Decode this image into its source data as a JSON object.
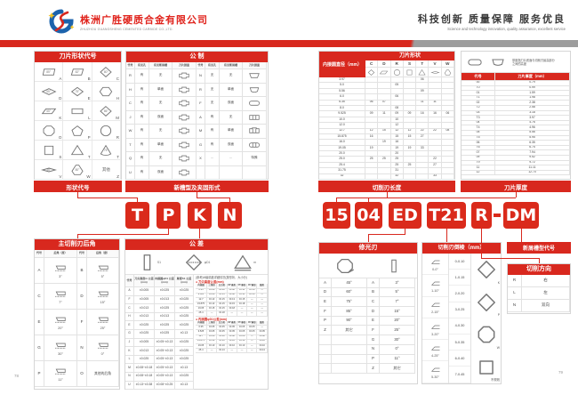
{
  "page": {
    "page_no_left": "78",
    "page_no_right": "79"
  },
  "colors": {
    "red": "#d8281e",
    "gray_band": "#9d9d9d",
    "logo_blue": "#1c63ac"
  },
  "header": {
    "company_cn": "株洲广胜硬质合金有限公司",
    "company_en": "ZHUZHOU GUANGSHENG CEMENTED CARBIDE CO.,LTD.",
    "slogan_cn": "科技创新 质量保障 服务优良",
    "slogan_en": "Science and technology innovation, quality assurance, excellent service"
  },
  "left_page": {
    "shape_table": {
      "title": "刀片形状代号",
      "cells": [
        {
          "code": "A",
          "angle": "85°",
          "icon": "para85"
        },
        {
          "code": "B",
          "angle": "82°",
          "icon": "para82"
        },
        {
          "code": "C",
          "angle": "80°",
          "icon": "dia80"
        },
        {
          "code": "D",
          "angle": "55°",
          "icon": "dia55"
        },
        {
          "code": "E",
          "angle": "75°",
          "icon": "dia75"
        },
        {
          "code": "H",
          "angle": "",
          "icon": "hex"
        },
        {
          "code": "K",
          "angle": "55°",
          "icon": "para55"
        },
        {
          "code": "L",
          "angle": "",
          "icon": "rect"
        },
        {
          "code": "M",
          "angle": "86°",
          "icon": "dia86"
        },
        {
          "code": "O",
          "angle": "",
          "icon": "oct"
        },
        {
          "code": "P",
          "angle": "",
          "icon": "pent"
        },
        {
          "code": "R",
          "angle": "",
          "icon": "circ"
        },
        {
          "code": "S",
          "angle": "",
          "icon": "sq"
        },
        {
          "code": "T",
          "angle": "",
          "icon": "tri"
        },
        {
          "code": "T",
          "angle": "75°",
          "icon": "tri75"
        },
        {
          "code": "V",
          "angle": "35°",
          "icon": "dia35"
        },
        {
          "code": "W",
          "angle": "80°",
          "icon": "trig80"
        },
        {
          "code": "Z",
          "angle": "其他",
          "icon": ""
        }
      ]
    },
    "metric_table": {
      "title": "公 制",
      "col_headers": [
        "代号",
        "有无孔",
        "有无断屑槽",
        "刀片剖面",
        "代号",
        "有无孔",
        "有无断屑槽",
        "刀片剖面"
      ],
      "left_rows": [
        {
          "code": "R",
          "hole": "有",
          "chip": "无",
          "icon": "cs_hole"
        },
        {
          "code": "H",
          "hole": "有",
          "chip": "单面",
          "icon": "cs_hole"
        },
        {
          "code": "C",
          "hole": "有",
          "chip": "无",
          "icon": "cs_hole"
        },
        {
          "code": "J",
          "hole": "有",
          "chip": "双面",
          "icon": "cs_hole"
        },
        {
          "code": "W",
          "hole": "有",
          "chip": "无",
          "icon": "cs_hole"
        },
        {
          "code": "T",
          "hole": "有",
          "chip": "单面",
          "icon": "cs_hole"
        },
        {
          "code": "Q",
          "hole": "有",
          "chip": "无",
          "icon": "cs_hole"
        },
        {
          "code": "U",
          "hole": "有",
          "chip": "双面",
          "icon": "cs_hole"
        }
      ],
      "right_rows": [
        {
          "code": "N",
          "hole": "无",
          "chip": "无",
          "icon": "cs_trap",
          "section_text": ""
        },
        {
          "code": "R",
          "hole": "无",
          "chip": "单面",
          "icon": "cs_trap_round",
          "section_text": ""
        },
        {
          "code": "F",
          "hole": "无",
          "chip": "双面",
          "icon": "cs_oval",
          "section_text": ""
        },
        {
          "code": "A",
          "hole": "有",
          "chip": "无",
          "icon": "cs_rect_lines",
          "section_text": ""
        },
        {
          "code": "M",
          "hole": "有",
          "chip": "单面",
          "icon": "cs_rect_lines_b",
          "section_text": ""
        },
        {
          "code": "G",
          "hole": "有",
          "chip": "双面",
          "icon": "cs_capsule_lines",
          "section_text": ""
        },
        {
          "code": "X",
          "hole": "…",
          "chip": "…",
          "icon": "",
          "section_text": "特殊"
        }
      ]
    },
    "bar_shape_code": "形状代号",
    "bar_new_groove": "新槽型及夹固形式",
    "code_letters": [
      "T",
      "P",
      "K",
      "N"
    ],
    "clearance_table": {
      "title": "主切削刃后角",
      "col_headers": [
        "代号",
        "后角（度）",
        "代号",
        "后角（度）"
      ],
      "rows": [
        {
          "c1": "A",
          "a1": "3°",
          "c2": "B",
          "a2": "5°"
        },
        {
          "c1": "C",
          "a1": "7°",
          "c2": "D",
          "a2": "15°"
        },
        {
          "c1": "E",
          "a1": "20°",
          "c2": "F",
          "a2": "25°"
        },
        {
          "c1": "G",
          "a1": "30°",
          "c2": "N",
          "a2": "0°"
        },
        {
          "c1": "P",
          "a1": "11°",
          "c2": "O",
          "a2": "其他的后角"
        }
      ]
    },
    "tolerance_table": {
      "title": "公 差",
      "diagram_labels": [
        "S1",
        "φD1",
        "m"
      ],
      "diagram_icons": [
        "tol_rect",
        "tol_dia",
        "tol_tri"
      ],
      "col_headers": [
        "代号",
        "刀尖高度m 公差(mm)",
        "内接圆φD1 公差(mm)",
        "厚度S1 公差(mm)"
      ],
      "rows": [
        [
          "A",
          "±0.005",
          "±0.025",
          "±0.025"
        ],
        [
          "F",
          "±0.005",
          "±0.013",
          "±0.025"
        ],
        [
          "C",
          "±0.013",
          "±0.025",
          "±0.025"
        ],
        [
          "H",
          "±0.013",
          "±0.013",
          "±0.025"
        ],
        [
          "E",
          "±0.025",
          "±0.025",
          "±0.025"
        ],
        [
          "G",
          "±0.025",
          "±0.025",
          "±0.13"
        ],
        [
          "J",
          "±0.005",
          "±0.05~±0.13",
          "±0.025"
        ],
        [
          "K",
          "±0.013",
          "±0.05~±0.13",
          "±0.025"
        ],
        [
          "L",
          "±0.025",
          "±0.05~±0.13",
          "±0.025"
        ],
        [
          "M",
          "±0.08~±0.18",
          "±0.05~±0.13",
          "±0.13"
        ],
        [
          "N",
          "±0.08~±0.18",
          "±0.05~±0.13",
          "±0.025"
        ],
        [
          "U",
          "±0.13~±0.38",
          "±0.08~±0.25",
          "±0.13"
        ]
      ],
      "ref_note": "(参考)M级精度详细情况(按形状、大小分)",
      "sub_headers": [
        "内接圆",
        "三角形",
        "正方形",
        "80°菱形",
        "55°菱形",
        "35°菱形",
        "圆形"
      ],
      "sub1_title": "● 刀尖高度公差(mm)",
      "sub1_rows": [
        [
          "6.35",
          "±0.08",
          "±0.08",
          "±0.08",
          "±0.11",
          "±0.16",
          "—"
        ],
        [
          "9.525",
          "±0.08",
          "±0.13",
          "±0.08",
          "±0.11",
          "±0.16",
          "—"
        ],
        [
          "12.7",
          "±0.13",
          "±0.15",
          "±0.13",
          "±0.15",
          "—",
          "—"
        ],
        [
          "15.875",
          "±0.13",
          "±0.15",
          "±0.15",
          "±0.18",
          "—",
          "—"
        ],
        [
          "19.05",
          "±0.15",
          "±0.15",
          "±0.18",
          "—",
          "—",
          "—"
        ],
        [
          "25.4",
          "—",
          "±0.18",
          "—",
          "—",
          "—",
          "—"
        ]
      ],
      "sub2_title": "● 内接圆φD1公差(mm)",
      "sub2_rows": [
        [
          "6.35",
          "±0.05",
          "±0.05",
          "±0.05",
          "±0.05",
          "±0.05",
          "—"
        ],
        [
          "9.525",
          "±0.05",
          "±0.05",
          "±0.05",
          "±0.05",
          "±0.05",
          "±0.05"
        ],
        [
          "12.7",
          "±0.08",
          "±0.08",
          "±0.08",
          "±0.08",
          "—",
          "±0.08"
        ],
        [
          "15.875",
          "±0.10",
          "±0.10",
          "±0.10",
          "±0.10",
          "—",
          "±0.10"
        ],
        [
          "19.05",
          "±0.10",
          "±0.10",
          "±0.10",
          "±0.10",
          "—",
          "±0.10"
        ],
        [
          "25.4",
          "—",
          "±0.13",
          "—",
          "—",
          "—",
          "±0.13"
        ]
      ]
    }
  },
  "right_page": {
    "size_table": {
      "title": "刀片形状",
      "ic_header": "内接圆直径（mm）",
      "cols": [
        {
          "label": "C",
          "icon": "dia80"
        },
        {
          "label": "D",
          "icon": "para55"
        },
        {
          "label": "R",
          "icon": "circ"
        },
        {
          "label": "S",
          "icon": "sq"
        },
        {
          "label": "T",
          "icon": "tri"
        },
        {
          "label": "V",
          "icon": "dia35"
        },
        {
          "label": "W",
          "icon": "trig80"
        }
      ],
      "rows": [
        {
          "ic": "3.97",
          "vals": [
            "",
            "",
            "",
            "",
            "06",
            "",
            ""
          ]
        },
        {
          "ic": "5.0",
          "vals": [
            "",
            "",
            "05",
            "",
            "",
            "",
            ""
          ]
        },
        {
          "ic": "5.56",
          "vals": [
            "",
            "",
            "",
            "",
            "09",
            "",
            ""
          ]
        },
        {
          "ic": "6.0",
          "vals": [
            "",
            "",
            "06",
            "",
            "",
            "",
            ""
          ]
        },
        {
          "ic": "6.35",
          "vals": [
            "06",
            "07",
            "",
            "",
            "11",
            "11",
            ""
          ]
        },
        {
          "ic": "8.0",
          "vals": [
            "",
            "",
            "08",
            "",
            "",
            "",
            ""
          ]
        },
        {
          "ic": "9.525",
          "vals": [
            "09",
            "11",
            "09",
            "09",
            "16",
            "16",
            "06"
          ]
        },
        {
          "ic": "10.0",
          "vals": [
            "",
            "",
            "10",
            "",
            "",
            "",
            ""
          ]
        },
        {
          "ic": "12.0",
          "vals": [
            "",
            "",
            "12",
            "",
            "",
            "",
            ""
          ]
        },
        {
          "ic": "12.7",
          "vals": [
            "12",
            "15",
            "12",
            "12",
            "22",
            "22",
            "08"
          ]
        },
        {
          "ic": "15.875",
          "vals": [
            "16",
            "",
            "15",
            "15",
            "27",
            "",
            ""
          ]
        },
        {
          "ic": "16.0",
          "vals": [
            "",
            "19",
            "16",
            "",
            "",
            "",
            ""
          ]
        },
        {
          "ic": "19.05",
          "vals": [
            "19",
            "",
            "19",
            "19",
            "33",
            "",
            ""
          ]
        },
        {
          "ic": "20.0",
          "vals": [
            "",
            "",
            "20",
            "",
            "",
            "",
            ""
          ]
        },
        {
          "ic": "25.0",
          "vals": [
            "25",
            "25",
            "25",
            "",
            "",
            "22",
            ""
          ]
        },
        {
          "ic": "25.4",
          "vals": [
            "",
            "",
            "25",
            "25",
            "",
            "27",
            ""
          ]
        },
        {
          "ic": "31.75",
          "vals": [
            "",
            "",
            "31",
            "",
            "",
            "",
            ""
          ]
        },
        {
          "ic": "32",
          "vals": [
            "",
            "",
            "32",
            "",
            "",
            "33",
            ""
          ]
        }
      ]
    },
    "thickness_table": {
      "note": "厚度指刀片底面与切削刃最高部分之间的高度",
      "diagram_icons": [
        "cs_oval",
        "cs_trap_round"
      ],
      "col_headers": [
        "代号",
        "刀片厚度（mm）"
      ],
      "rows": [
        [
          "00",
          "0.79"
        ],
        [
          "T0",
          "0.99"
        ],
        [
          "01",
          "1.59"
        ],
        [
          "T1",
          "1.98"
        ],
        [
          "02",
          "2.38"
        ],
        [
          "T2",
          "2.58"
        ],
        [
          "03",
          "3.18"
        ],
        [
          "T3",
          "3.97"
        ],
        [
          "04",
          "4.76"
        ],
        [
          "T4",
          "4.96"
        ],
        [
          "05",
          "5.56"
        ],
        [
          "T5",
          "5.95"
        ],
        [
          "06",
          "6.35"
        ],
        [
          "T6",
          "6.75"
        ],
        [
          "07",
          "7.94"
        ],
        [
          "09",
          "9.52"
        ],
        [
          "T9",
          "9.72"
        ],
        [
          "11",
          "11.11"
        ],
        [
          "12",
          "12.70"
        ]
      ]
    },
    "bar_edge_length": "切削刃长度",
    "bar_thickness": "刀片厚度",
    "code_boxes": [
      "15",
      "04",
      "ED",
      "T21",
      "R",
      "DM"
    ],
    "code_dash": "-",
    "wiper_table": {
      "title": "修光刃",
      "diagram_icons": [
        "wiper_oct",
        "wiper_rect"
      ],
      "left_rows": [
        [
          "A",
          "45°"
        ],
        [
          "D",
          "60°"
        ],
        [
          "E",
          "75°"
        ],
        [
          "F",
          "85°"
        ],
        [
          "P",
          "90°"
        ],
        [
          "Z",
          "其它"
        ]
      ],
      "right_rows": [
        [
          "A",
          "3°"
        ],
        [
          "B",
          "5°"
        ],
        [
          "C",
          "7°"
        ],
        [
          "D",
          "15°"
        ],
        [
          "E",
          "20°"
        ],
        [
          "F",
          "25°"
        ],
        [
          "G",
          "30°"
        ],
        [
          "N",
          "0°"
        ],
        [
          "P",
          "11°"
        ],
        [
          "Z",
          "其它"
        ]
      ]
    },
    "chamfer_table": {
      "title": "切削刃倒棱（mm）",
      "angle_rows": [
        "0-0°",
        "1-10°",
        "2-15°",
        "3-20°",
        "4-25°",
        "5-30°"
      ],
      "width_rows": [
        "0-0.10",
        "1-0.15",
        "2-0.20",
        "3-0.25",
        "4-0.30",
        "5-0.35",
        "6-0.40",
        "7-0.45"
      ],
      "shape_rows": [
        {
          "label": "K",
          "icon": "corner_dia"
        },
        {
          "label": "P",
          "icon": "corner_dia"
        },
        {
          "label": "W",
          "icon": "corner_oct"
        },
        {
          "label": "不规则",
          "icon": "corner_sq"
        }
      ]
    },
    "bar_new_chip": "新屑槽型代号",
    "direction_table": {
      "title": "切削方向",
      "rows": [
        [
          "R",
          "右"
        ],
        [
          "L",
          "左"
        ],
        [
          "N",
          "双向"
        ]
      ]
    }
  }
}
